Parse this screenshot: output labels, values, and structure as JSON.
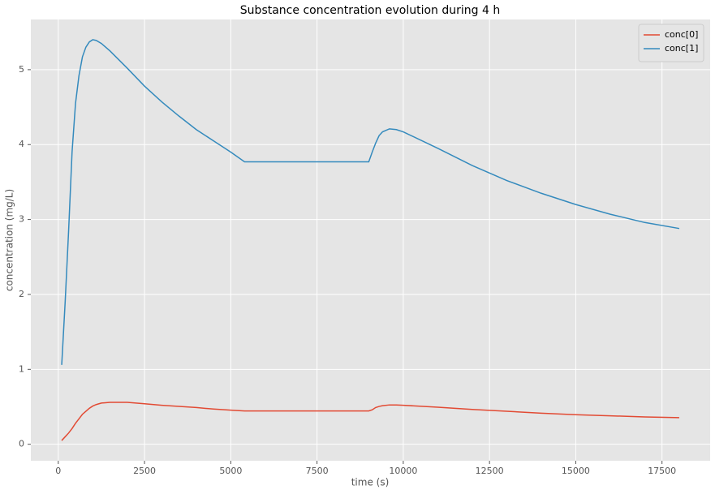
{
  "chart_data": {
    "type": "line",
    "title": "Substance concentration evolution during 4 h",
    "x_label": "time (s)",
    "y_label": "concentration (mg/L)",
    "x": [
      100,
      200,
      300,
      400,
      500,
      600,
      700,
      800,
      900,
      1000,
      1100,
      1250,
      1500,
      2000,
      2500,
      3000,
      3500,
      4000,
      4500,
      5000,
      5400,
      9000,
      9100,
      9200,
      9300,
      9400,
      9600,
      9800,
      10000,
      11000,
      12000,
      13000,
      14000,
      15000,
      16000,
      17000,
      18000
    ],
    "series": [
      {
        "name": "conc[0]",
        "color": "#e24a33",
        "values": [
          0.05,
          0.1,
          0.15,
          0.21,
          0.28,
          0.34,
          0.4,
          0.44,
          0.48,
          0.51,
          0.53,
          0.55,
          0.56,
          0.56,
          0.54,
          0.52,
          0.505,
          0.49,
          0.47,
          0.455,
          0.445,
          0.445,
          0.46,
          0.49,
          0.505,
          0.515,
          0.525,
          0.525,
          0.52,
          0.495,
          0.465,
          0.44,
          0.415,
          0.395,
          0.38,
          0.365,
          0.355
        ]
      },
      {
        "name": "conc[1]",
        "color": "#348abd",
        "values": [
          1.06,
          1.9,
          2.85,
          3.9,
          4.55,
          4.92,
          5.17,
          5.3,
          5.37,
          5.4,
          5.39,
          5.35,
          5.25,
          5.02,
          4.78,
          4.57,
          4.38,
          4.2,
          4.05,
          3.9,
          3.77,
          3.77,
          3.9,
          4.02,
          4.12,
          4.17,
          4.21,
          4.2,
          4.17,
          3.95,
          3.72,
          3.52,
          3.35,
          3.2,
          3.07,
          2.96,
          2.88
        ]
      }
    ],
    "xlim": [
      -795,
      18895
    ],
    "xticks": [
      0,
      2500,
      5000,
      7500,
      10000,
      12500,
      15000,
      17500
    ],
    "ylim": [
      -0.22,
      5.67
    ],
    "yticks": [
      0,
      1,
      2,
      3,
      4,
      5
    ],
    "grid": true,
    "legend": "upper right"
  }
}
